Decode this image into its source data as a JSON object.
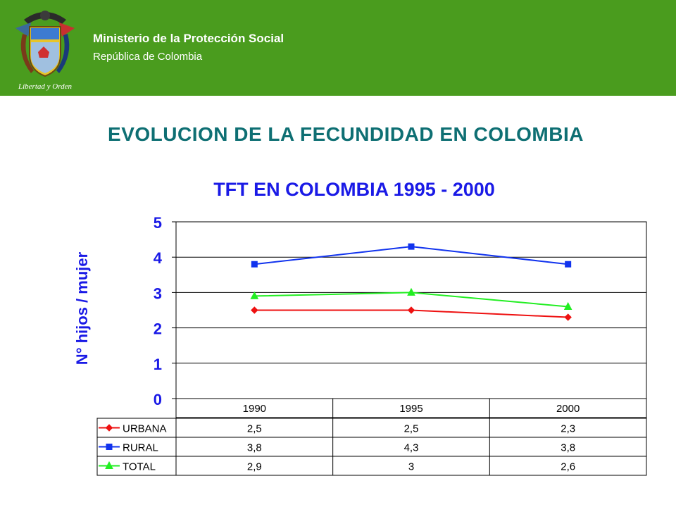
{
  "header": {
    "ministry": "Ministerio de la Protección Social",
    "republic": "República de Colombia",
    "motto": "Libertad y Orden",
    "logo_icon": "colombia-coat-of-arms-icon",
    "background": "#4a9c1e"
  },
  "slide_title": "EVOLUCION DE LA FECUNDIDAD EN COLOMBIA",
  "chart_data": {
    "type": "line",
    "title": "TFT EN COLOMBIA 1995 - 2000",
    "ylabel": "N° hijos / mujer",
    "xlabel": "",
    "categories": [
      "1990",
      "1995",
      "2000"
    ],
    "ylim": [
      0,
      5
    ],
    "yticks": [
      0,
      1,
      2,
      3,
      4,
      5
    ],
    "grid": true,
    "legend": "data-table-left",
    "series": [
      {
        "name": "URBANA",
        "values": [
          2.5,
          2.5,
          2.3
        ],
        "labels": [
          "2,5",
          "2,5",
          "2,3"
        ],
        "color": "#ee1111",
        "marker": "diamond"
      },
      {
        "name": "RURAL",
        "values": [
          3.8,
          4.3,
          3.8
        ],
        "labels": [
          "3,8",
          "4,3",
          "3,8"
        ],
        "color": "#1133ee",
        "marker": "square"
      },
      {
        "name": "TOTAL",
        "values": [
          2.9,
          3,
          2.6
        ],
        "labels": [
          "2,9",
          "3",
          "2,6"
        ],
        "color": "#22ee22",
        "marker": "triangle"
      }
    ]
  }
}
